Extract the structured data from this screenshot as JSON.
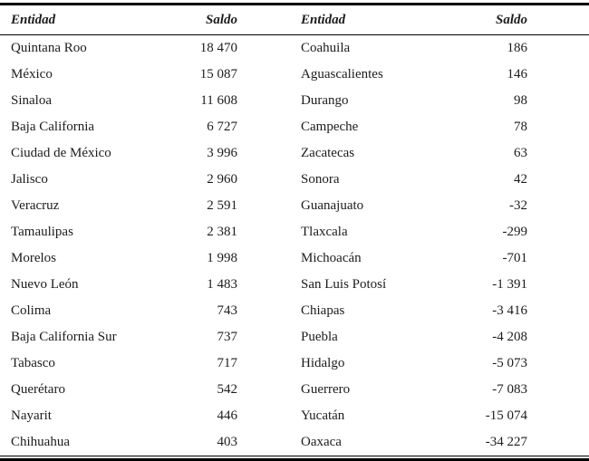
{
  "colors": {
    "background": "#ffffff",
    "rule": "#000000",
    "text": "#1c1c1c"
  },
  "table": {
    "headers": [
      "Entidad",
      "Saldo",
      "Entidad",
      "Saldo"
    ],
    "rows": [
      {
        "entity_left": "Quintana Roo",
        "saldo_left": "18 470",
        "entity_right": "Coahuila",
        "saldo_right": "186"
      },
      {
        "entity_left": "México",
        "saldo_left": "15 087",
        "entity_right": "Aguascalientes",
        "saldo_right": "146"
      },
      {
        "entity_left": "Sinaloa",
        "saldo_left": "11 608",
        "entity_right": "Durango",
        "saldo_right": "98"
      },
      {
        "entity_left": "Baja California",
        "saldo_left": "6 727",
        "entity_right": "Campeche",
        "saldo_right": "78"
      },
      {
        "entity_left": "Ciudad de México",
        "saldo_left": "3 996",
        "entity_right": "Zacatecas",
        "saldo_right": "63"
      },
      {
        "entity_left": "Jalisco",
        "saldo_left": "2 960",
        "entity_right": "Sonora",
        "saldo_right": "42"
      },
      {
        "entity_left": "Veracruz",
        "saldo_left": "2 591",
        "entity_right": "Guanajuato",
        "saldo_right": "-32"
      },
      {
        "entity_left": "Tamaulipas",
        "saldo_left": "2 381",
        "entity_right": "Tlaxcala",
        "saldo_right": "-299"
      },
      {
        "entity_left": "Morelos",
        "saldo_left": "1 998",
        "entity_right": "Michoacán",
        "saldo_right": "-701"
      },
      {
        "entity_left": "Nuevo León",
        "saldo_left": "1 483",
        "entity_right": "San Luis Potosí",
        "saldo_right": "-1 391"
      },
      {
        "entity_left": "Colima",
        "saldo_left": "743",
        "entity_right": "Chiapas",
        "saldo_right": "-3 416"
      },
      {
        "entity_left": "Baja California Sur",
        "saldo_left": "737",
        "entity_right": "Puebla",
        "saldo_right": "-4 208"
      },
      {
        "entity_left": "Tabasco",
        "saldo_left": "717",
        "entity_right": "Hidalgo",
        "saldo_right": "-5 073"
      },
      {
        "entity_left": "Querétaro",
        "saldo_left": "542",
        "entity_right": "Guerrero",
        "saldo_right": "-7 083"
      },
      {
        "entity_left": "Nayarit",
        "saldo_left": "446",
        "entity_right": "Yucatán",
        "saldo_right": "-15 074"
      },
      {
        "entity_left": "Chihuahua",
        "saldo_left": "403",
        "entity_right": "Oaxaca",
        "saldo_right": "-34 227"
      }
    ]
  }
}
